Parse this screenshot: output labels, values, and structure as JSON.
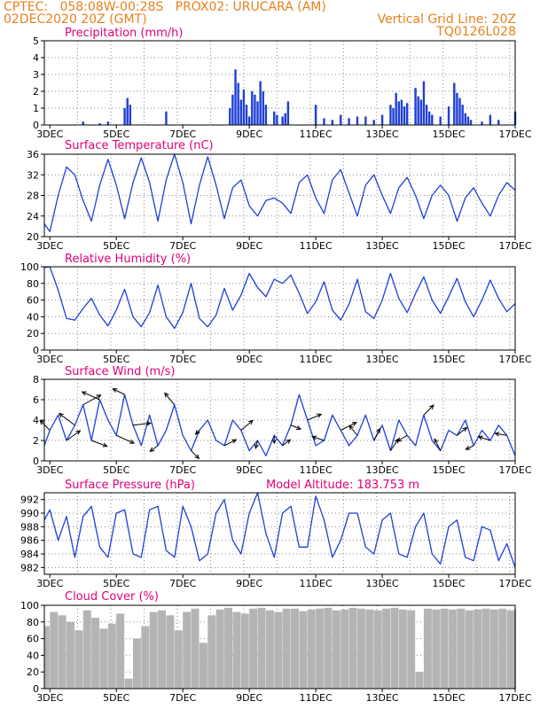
{
  "header": {
    "left_line1": "CPTEC:   058:08W-00:28S   PROX02: URUCARA (AM)",
    "left_line2": "02DEC2020 20Z (GMT)",
    "right_line2": "Vertical Grid Line: 20Z",
    "right_line3": "TQ0126L028"
  },
  "colors": {
    "header": "#e8801c",
    "title": "#e0007a",
    "line": "#1f3fd6",
    "bar": "#1f3fd6",
    "cloud": "#b4b4b4"
  },
  "x_axis": {
    "labels": [
      "3DEC",
      "5DEC",
      "7DEC",
      "9DEC",
      "11DEC",
      "13DEC",
      "15DEC",
      "17DEC"
    ]
  },
  "chart_data": [
    {
      "type": "bar",
      "title": "Precipitation (mm/h)",
      "ylim": [
        0,
        5
      ],
      "yticks": [
        "0",
        "1",
        "2",
        "3",
        "4",
        "5"
      ],
      "x": [
        "02DEC 20Z",
        "04DEC 00Z",
        "04DEC 12Z",
        "04DEC 18Z",
        "05DEC 06Z",
        "05DEC 08Z",
        "05DEC 10Z",
        "06DEC 12Z",
        "08DEC 10Z",
        "08DEC 12Z",
        "08DEC 14Z",
        "08DEC 16Z",
        "08DEC 18Z",
        "08DEC 20Z",
        "08DEC 22Z",
        "09DEC 00Z",
        "09DEC 02Z",
        "09DEC 04Z",
        "09DEC 06Z",
        "09DEC 08Z",
        "09DEC 10Z",
        "09DEC 12Z",
        "09DEC 18Z",
        "09DEC 20Z",
        "10DEC 00Z",
        "10DEC 02Z",
        "10DEC 04Z",
        "11DEC 00Z",
        "11DEC 06Z",
        "11DEC 12Z",
        "11DEC 18Z",
        "12DEC 00Z",
        "12DEC 06Z",
        "12DEC 12Z",
        "12DEC 18Z",
        "13DEC 00Z",
        "13DEC 06Z",
        "13DEC 08Z",
        "13DEC 10Z",
        "13DEC 12Z",
        "13DEC 14Z",
        "13DEC 16Z",
        "13DEC 18Z",
        "14DEC 00Z",
        "14DEC 02Z",
        "14DEC 04Z",
        "14DEC 06Z",
        "14DEC 08Z",
        "14DEC 10Z",
        "14DEC 12Z",
        "14DEC 18Z",
        "15DEC 00Z",
        "15DEC 04Z",
        "15DEC 06Z",
        "15DEC 08Z",
        "15DEC 10Z",
        "15DEC 12Z",
        "15DEC 14Z",
        "15DEC 16Z",
        "16DEC 00Z",
        "16DEC 06Z",
        "16DEC 12Z",
        "17DEC 00Z"
      ],
      "values": [
        0,
        0.2,
        0.1,
        0.2,
        1.0,
        1.6,
        1.2,
        0.8,
        1.0,
        1.8,
        3.3,
        2.5,
        1.5,
        2.1,
        1.2,
        0.5,
        2.0,
        1.8,
        1.4,
        2.6,
        2.0,
        1.2,
        0.8,
        0.6,
        0.5,
        0.7,
        1.4,
        1.2,
        0.4,
        0.3,
        0.6,
        0.4,
        0.5,
        0.5,
        0.3,
        0.6,
        1.2,
        1.0,
        1.9,
        1.4,
        1.5,
        1.1,
        1.3,
        2.2,
        1.7,
        1.5,
        2.6,
        1.2,
        0.8,
        0.6,
        0.5,
        1.1,
        2.5,
        1.9,
        1.6,
        1.2,
        0.7,
        0.5,
        0.3,
        0.2,
        0.6,
        0.3,
        0.8
      ]
    },
    {
      "type": "line",
      "title": "Surface Temperature (nC)",
      "ylim": [
        20,
        36
      ],
      "yticks": [
        "20",
        "24",
        "28",
        "32",
        "36"
      ],
      "x": [
        "02DEC 20Z",
        "03DEC 00Z",
        "03DEC 06Z",
        "03DEC 12Z",
        "03DEC 18Z",
        "04DEC 00Z",
        "04DEC 06Z",
        "04DEC 12Z",
        "04DEC 18Z",
        "05DEC 00Z",
        "05DEC 06Z",
        "05DEC 12Z",
        "05DEC 18Z",
        "06DEC 00Z",
        "06DEC 06Z",
        "06DEC 12Z",
        "06DEC 18Z",
        "07DEC 00Z",
        "07DEC 06Z",
        "07DEC 12Z",
        "07DEC 18Z",
        "08DEC 00Z",
        "08DEC 06Z",
        "08DEC 12Z",
        "08DEC 18Z",
        "09DEC 00Z",
        "09DEC 06Z",
        "09DEC 12Z",
        "09DEC 18Z",
        "10DEC 00Z",
        "10DEC 06Z",
        "10DEC 12Z",
        "10DEC 18Z",
        "11DEC 00Z",
        "11DEC 06Z",
        "11DEC 12Z",
        "11DEC 18Z",
        "12DEC 00Z",
        "12DEC 06Z",
        "12DEC 12Z",
        "12DEC 18Z",
        "13DEC 00Z",
        "13DEC 06Z",
        "13DEC 12Z",
        "13DEC 18Z",
        "14DEC 00Z",
        "14DEC 06Z",
        "14DEC 12Z",
        "14DEC 18Z",
        "15DEC 00Z",
        "15DEC 06Z",
        "15DEC 12Z",
        "15DEC 18Z",
        "16DEC 00Z",
        "16DEC 06Z",
        "16DEC 12Z",
        "16DEC 18Z",
        "17DEC 00Z"
      ],
      "values": [
        22.5,
        21.0,
        28.0,
        33.5,
        32.0,
        27.0,
        23.0,
        30.0,
        35.0,
        30.0,
        23.5,
        30.5,
        35.3,
        30.5,
        23.0,
        31.0,
        36.0,
        30.5,
        22.5,
        30.0,
        35.5,
        30.0,
        23.5,
        29.5,
        31.0,
        26.0,
        24.0,
        27.0,
        27.5,
        26.5,
        24.5,
        30.5,
        32.0,
        27.5,
        24.5,
        31.0,
        33.0,
        28.5,
        24.0,
        30.0,
        32.0,
        28.0,
        24.5,
        29.5,
        31.5,
        28.0,
        23.5,
        28.0,
        30.0,
        28.0,
        23.0,
        27.5,
        29.5,
        26.5,
        24.0,
        28.0,
        30.5,
        29.0
      ]
    },
    {
      "type": "line",
      "title": "Relative Humidity (%)",
      "ylim": [
        0,
        100
      ],
      "yticks": [
        "0",
        "20",
        "40",
        "60",
        "80",
        "100"
      ],
      "x": [
        "02DEC 20Z",
        "03DEC 00Z",
        "03DEC 06Z",
        "03DEC 12Z",
        "03DEC 18Z",
        "04DEC 00Z",
        "04DEC 06Z",
        "04DEC 12Z",
        "04DEC 18Z",
        "05DEC 00Z",
        "05DEC 06Z",
        "05DEC 12Z",
        "05DEC 18Z",
        "06DEC 00Z",
        "06DEC 06Z",
        "06DEC 12Z",
        "06DEC 18Z",
        "07DEC 00Z",
        "07DEC 06Z",
        "07DEC 12Z",
        "07DEC 18Z",
        "08DEC 00Z",
        "08DEC 06Z",
        "08DEC 12Z",
        "08DEC 18Z",
        "09DEC 00Z",
        "09DEC 06Z",
        "09DEC 12Z",
        "09DEC 18Z",
        "10DEC 00Z",
        "10DEC 06Z",
        "10DEC 12Z",
        "10DEC 18Z",
        "11DEC 00Z",
        "11DEC 06Z",
        "11DEC 12Z",
        "11DEC 18Z",
        "12DEC 00Z",
        "12DEC 06Z",
        "12DEC 12Z",
        "12DEC 18Z",
        "13DEC 00Z",
        "13DEC 06Z",
        "13DEC 12Z",
        "13DEC 18Z",
        "14DEC 00Z",
        "14DEC 06Z",
        "14DEC 12Z",
        "14DEC 18Z",
        "15DEC 00Z",
        "15DEC 06Z",
        "15DEC 12Z",
        "15DEC 18Z",
        "16DEC 00Z",
        "16DEC 06Z",
        "16DEC 12Z",
        "16DEC 18Z",
        "17DEC 00Z"
      ],
      "values": [
        99,
        100,
        72,
        38,
        36,
        50,
        62,
        42,
        29,
        48,
        73,
        40,
        28,
        45,
        78,
        40,
        26,
        45,
        80,
        38,
        28,
        42,
        74,
        48,
        66,
        92,
        75,
        64,
        85,
        80,
        90,
        68,
        44,
        58,
        82,
        48,
        36,
        55,
        85,
        46,
        38,
        60,
        92,
        62,
        45,
        68,
        88,
        60,
        44,
        64,
        86,
        58,
        40,
        60,
        84,
        62,
        46,
        56
      ]
    },
    {
      "type": "line",
      "title": "Surface Wind (m/s)",
      "ylim": [
        0,
        8
      ],
      "yticks": [
        "0",
        "2",
        "4",
        "6",
        "8"
      ],
      "x": [
        "02DEC 20Z",
        "03DEC 00Z",
        "03DEC 06Z",
        "03DEC 12Z",
        "03DEC 18Z",
        "04DEC 00Z",
        "04DEC 06Z",
        "04DEC 12Z",
        "04DEC 18Z",
        "05DEC 00Z",
        "05DEC 06Z",
        "05DEC 12Z",
        "05DEC 18Z",
        "06DEC 00Z",
        "06DEC 06Z",
        "06DEC 12Z",
        "06DEC 18Z",
        "07DEC 00Z",
        "07DEC 06Z",
        "07DEC 12Z",
        "07DEC 18Z",
        "08DEC 00Z",
        "08DEC 06Z",
        "08DEC 12Z",
        "08DEC 18Z",
        "09DEC 00Z",
        "09DEC 06Z",
        "09DEC 12Z",
        "09DEC 18Z",
        "10DEC 00Z",
        "10DEC 06Z",
        "10DEC 12Z",
        "10DEC 18Z",
        "11DEC 00Z",
        "11DEC 06Z",
        "11DEC 12Z",
        "11DEC 18Z",
        "12DEC 00Z",
        "12DEC 06Z",
        "12DEC 12Z",
        "12DEC 18Z",
        "13DEC 00Z",
        "13DEC 06Z",
        "13DEC 12Z",
        "13DEC 18Z",
        "14DEC 00Z",
        "14DEC 06Z",
        "14DEC 12Z",
        "14DEC 18Z",
        "15DEC 00Z",
        "15DEC 06Z",
        "15DEC 12Z",
        "15DEC 18Z",
        "16DEC 00Z",
        "16DEC 06Z",
        "16DEC 12Z",
        "16DEC 18Z",
        "17DEC 00Z"
      ],
      "values": [
        1.5,
        3.0,
        4.5,
        2.0,
        3.5,
        5.5,
        2.0,
        6.0,
        4.0,
        2.5,
        6.5,
        3.5,
        1.5,
        4.5,
        1.5,
        3.0,
        5.5,
        2.5,
        1.0,
        3.0,
        4.0,
        2.0,
        1.5,
        4.0,
        3.0,
        1.0,
        2.0,
        0.5,
        2.5,
        1.5,
        3.5,
        6.5,
        4.0,
        1.5,
        2.0,
        4.5,
        3.0,
        1.5,
        2.5,
        4.5,
        2.0,
        3.5,
        1.0,
        4.0,
        2.5,
        1.5,
        4.5,
        2.0,
        1.0,
        3.0,
        2.5,
        4.0,
        1.5,
        3.0,
        2.0,
        3.5,
        2.5,
        0.5
      ],
      "wind_vectors": [
        {
          "x": "03DEC 00Z",
          "dx": -0.5,
          "dy": 0.5
        },
        {
          "x": "03DEC 12Z",
          "dx": 0.7,
          "dy": 0.5
        },
        {
          "x": "03DEC 18Z",
          "dx": -0.8,
          "dy": 0.6
        },
        {
          "x": "04DEC 00Z",
          "dx": 0.9,
          "dy": 0.5
        },
        {
          "x": "04DEC 06Z",
          "dx": 0.8,
          "dy": -0.3
        },
        {
          "x": "04DEC 12Z",
          "dx": -0.9,
          "dy": 0.4
        },
        {
          "x": "05DEC 00Z",
          "dx": 0.9,
          "dy": -0.4
        },
        {
          "x": "05DEC 06Z",
          "dx": -0.6,
          "dy": 0.3
        },
        {
          "x": "05DEC 12Z",
          "dx": 0.9,
          "dy": 0.1
        },
        {
          "x": "06DEC 06Z",
          "dx": -0.4,
          "dy": -0.3
        },
        {
          "x": "06DEC 18Z",
          "dx": -0.5,
          "dy": 0.6
        },
        {
          "x": "07DEC 06Z",
          "dx": 0.4,
          "dy": -0.4
        },
        {
          "x": "07DEC 12Z",
          "dx": -0.2,
          "dy": -0.2
        },
        {
          "x": "08DEC 06Z",
          "dx": 0.6,
          "dy": 0.3
        },
        {
          "x": "08DEC 18Z",
          "dx": 0.6,
          "dy": 0.5
        },
        {
          "x": "09DEC 06Z",
          "dx": -0.1,
          "dy": -0.4
        },
        {
          "x": "09DEC 18Z",
          "dx": 0.0,
          "dy": -0.4
        },
        {
          "x": "10DEC 00Z",
          "dx": 0.4,
          "dy": 0.3
        },
        {
          "x": "10DEC 06Z",
          "dx": 0.5,
          "dy": -0.2
        },
        {
          "x": "10DEC 18Z",
          "dx": 0.7,
          "dy": 0.3
        },
        {
          "x": "11DEC 06Z",
          "dx": -0.6,
          "dy": 0.2
        },
        {
          "x": "11DEC 18Z",
          "dx": 0.8,
          "dy": 0.4
        },
        {
          "x": "12DEC 06Z",
          "dx": -0.4,
          "dy": 0.5
        },
        {
          "x": "12DEC 18Z",
          "dx": 0.3,
          "dy": 0.6
        },
        {
          "x": "13DEC 06Z",
          "dx": 0.4,
          "dy": 0.6
        },
        {
          "x": "13DEC 18Z",
          "dx": -0.5,
          "dy": -0.3
        },
        {
          "x": "14DEC 06Z",
          "dx": 0.5,
          "dy": 0.5
        },
        {
          "x": "14DEC 18Z",
          "dx": -0.3,
          "dy": 0.6
        },
        {
          "x": "15DEC 06Z",
          "dx": 0.5,
          "dy": 0.4
        },
        {
          "x": "15DEC 18Z",
          "dx": -0.4,
          "dy": -0.2
        },
        {
          "x": "16DEC 06Z",
          "dx": -0.6,
          "dy": 0.2
        },
        {
          "x": "16DEC 18Z",
          "dx": -0.6,
          "dy": 0.1
        }
      ]
    },
    {
      "type": "line",
      "title": "Surface Pressure (hPa)",
      "annotation": "Model Altitude: 183.753 m",
      "ylim": [
        981,
        993
      ],
      "yticks": [
        "982",
        "984",
        "986",
        "988",
        "990",
        "992"
      ],
      "x": [
        "02DEC 20Z",
        "03DEC 00Z",
        "03DEC 06Z",
        "03DEC 12Z",
        "03DEC 18Z",
        "04DEC 00Z",
        "04DEC 06Z",
        "04DEC 12Z",
        "04DEC 18Z",
        "05DEC 00Z",
        "05DEC 06Z",
        "05DEC 12Z",
        "05DEC 18Z",
        "06DEC 00Z",
        "06DEC 06Z",
        "06DEC 12Z",
        "06DEC 18Z",
        "07DEC 00Z",
        "07DEC 06Z",
        "07DEC 12Z",
        "07DEC 18Z",
        "08DEC 00Z",
        "08DEC 06Z",
        "08DEC 12Z",
        "08DEC 18Z",
        "09DEC 00Z",
        "09DEC 06Z",
        "09DEC 12Z",
        "09DEC 18Z",
        "10DEC 00Z",
        "10DEC 06Z",
        "10DEC 12Z",
        "10DEC 18Z",
        "11DEC 00Z",
        "11DEC 06Z",
        "11DEC 12Z",
        "11DEC 18Z",
        "12DEC 00Z",
        "12DEC 06Z",
        "12DEC 12Z",
        "12DEC 18Z",
        "13DEC 00Z",
        "13DEC 06Z",
        "13DEC 12Z",
        "13DEC 18Z",
        "14DEC 00Z",
        "14DEC 06Z",
        "14DEC 12Z",
        "14DEC 18Z",
        "15DEC 00Z",
        "15DEC 06Z",
        "15DEC 12Z",
        "15DEC 18Z",
        "16DEC 00Z",
        "16DEC 06Z",
        "16DEC 12Z",
        "16DEC 18Z",
        "17DEC 00Z"
      ],
      "values": [
        989,
        990.5,
        986,
        989.5,
        983.5,
        989.5,
        991,
        985,
        983.5,
        990,
        990.5,
        984,
        983.5,
        990.5,
        991,
        984.5,
        983.5,
        991,
        988,
        983,
        984,
        990,
        992,
        986,
        984,
        990,
        993,
        987,
        983.5,
        990,
        991,
        985,
        985,
        992.5,
        989,
        983.5,
        986,
        990,
        990,
        985,
        984,
        989,
        990,
        984,
        983.5,
        988,
        990,
        984,
        982.5,
        988,
        989,
        983.5,
        983,
        988,
        987.5,
        983,
        985.5,
        982
      ]
    },
    {
      "type": "bar",
      "title": "Cloud Cover (%)",
      "ylim": [
        0,
        100
      ],
      "yticks": [
        "0",
        "20",
        "40",
        "60",
        "80",
        "100"
      ],
      "x": [
        "02DEC 20Z",
        "03DEC 00Z",
        "03DEC 06Z",
        "03DEC 12Z",
        "03DEC 18Z",
        "04DEC 00Z",
        "04DEC 06Z",
        "04DEC 12Z",
        "04DEC 18Z",
        "05DEC 00Z",
        "05DEC 06Z",
        "05DEC 12Z",
        "05DEC 18Z",
        "06DEC 00Z",
        "06DEC 06Z",
        "06DEC 12Z",
        "06DEC 18Z",
        "07DEC 00Z",
        "07DEC 06Z",
        "07DEC 12Z",
        "07DEC 18Z",
        "08DEC 00Z",
        "08DEC 06Z",
        "08DEC 12Z",
        "08DEC 18Z",
        "09DEC 00Z",
        "09DEC 06Z",
        "09DEC 12Z",
        "09DEC 18Z",
        "10DEC 00Z",
        "10DEC 06Z",
        "10DEC 12Z",
        "10DEC 18Z",
        "11DEC 00Z",
        "11DEC 06Z",
        "11DEC 12Z",
        "11DEC 18Z",
        "12DEC 00Z",
        "12DEC 06Z",
        "12DEC 12Z",
        "12DEC 18Z",
        "13DEC 00Z",
        "13DEC 06Z",
        "13DEC 12Z",
        "13DEC 18Z",
        "14DEC 00Z",
        "14DEC 06Z",
        "14DEC 12Z",
        "14DEC 18Z",
        "15DEC 00Z",
        "15DEC 06Z",
        "15DEC 12Z",
        "15DEC 18Z",
        "16DEC 00Z",
        "16DEC 06Z",
        "16DEC 12Z",
        "16DEC 18Z",
        "17DEC 00Z"
      ],
      "values": [
        75,
        92,
        88,
        80,
        70,
        94,
        85,
        72,
        78,
        90,
        12,
        60,
        75,
        92,
        94,
        88,
        70,
        92,
        96,
        55,
        88,
        95,
        97,
        92,
        90,
        96,
        97,
        94,
        92,
        96,
        96,
        93,
        95,
        96,
        97,
        94,
        95,
        97,
        96,
        95,
        94,
        96,
        97,
        95,
        94,
        20,
        96,
        95,
        96,
        95,
        96,
        94,
        95,
        96,
        95,
        96,
        94,
        96
      ]
    }
  ]
}
